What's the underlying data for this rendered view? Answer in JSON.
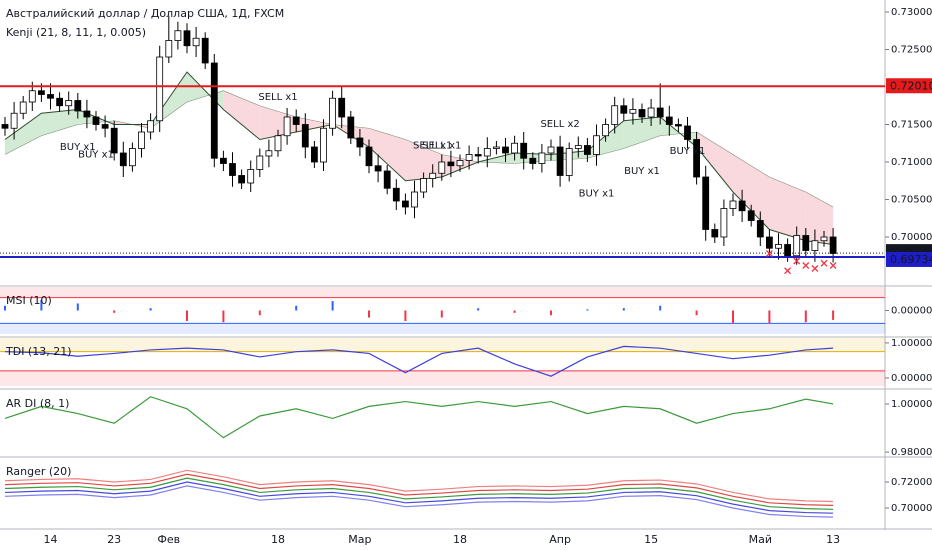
{
  "chart_data": [
    {
      "type": "candlestick",
      "title": "Австралийский доллар / Доллар США, 1Д, FXCM",
      "subtitle": "Kenji (21, 8, 11, 1, 0.005)",
      "categories": [
        null,
        null,
        null,
        null,
        null,
        "14",
        null,
        null,
        null,
        null,
        null,
        null,
        "23",
        null,
        null,
        null,
        null,
        null,
        "Фев",
        null,
        null,
        null,
        null,
        null,
        null,
        null,
        null,
        null,
        null,
        null,
        "18",
        null,
        null,
        null,
        null,
        null,
        null,
        null,
        null,
        "Мар",
        null,
        null,
        null,
        null,
        null,
        null,
        null,
        null,
        null,
        null,
        "18",
        null,
        null,
        null,
        null,
        null,
        null,
        null,
        null,
        null,
        null,
        "Апр",
        null,
        null,
        null,
        null,
        null,
        null,
        null,
        null,
        null,
        "15",
        null,
        null,
        null,
        null,
        null,
        null,
        null,
        null,
        null,
        null,
        null,
        "Май",
        null,
        null,
        null,
        null,
        null,
        null,
        null,
        "13"
      ],
      "open": [
        0.715,
        0.7145,
        0.7165,
        0.718,
        0.7195,
        0.719,
        0.7185,
        0.7175,
        0.7182,
        0.7168,
        0.716,
        0.715,
        0.7145,
        0.7112,
        0.7095,
        0.7118,
        0.714,
        0.7155,
        0.724,
        0.7262,
        0.7275,
        0.7255,
        0.7265,
        0.7232,
        0.7105,
        0.7098,
        0.7082,
        0.7072,
        0.709,
        0.7108,
        0.7115,
        0.7135,
        0.716,
        0.715,
        0.712,
        0.71,
        0.7145,
        0.7185,
        0.716,
        0.7132,
        0.712,
        0.7095,
        0.7088,
        0.7065,
        0.7048,
        0.704,
        0.706,
        0.7078,
        0.7085,
        0.71,
        0.7095,
        0.7102,
        0.711,
        0.7108,
        0.7118,
        0.712,
        0.7112,
        0.7125,
        0.7105,
        0.7098,
        0.7112,
        0.712,
        0.7082,
        0.7118,
        0.7122,
        0.711,
        0.7135,
        0.715,
        0.7175,
        0.7165,
        0.717,
        0.716,
        0.7172,
        0.716,
        0.715,
        0.7148,
        0.713,
        0.708,
        0.701,
        0.7,
        0.7038,
        0.7048,
        0.7035,
        0.7022,
        0.7,
        0.6985,
        0.699,
        0.6975,
        0.7002,
        0.6982,
        0.6995,
        0.7
      ],
      "high": [
        0.716,
        0.718,
        0.7188,
        0.7207,
        0.7205,
        0.7205,
        0.7193,
        0.7194,
        0.7192,
        0.7183,
        0.7168,
        0.7162,
        0.7155,
        0.7127,
        0.7126,
        0.7152,
        0.7165,
        0.7255,
        0.7295,
        0.7287,
        0.7285,
        0.728,
        0.7273,
        0.7244,
        0.7115,
        0.7113,
        0.709,
        0.7102,
        0.7118,
        0.713,
        0.7143,
        0.7172,
        0.717,
        0.7165,
        0.7128,
        0.7157,
        0.7195,
        0.72,
        0.7168,
        0.7144,
        0.713,
        0.711,
        0.7096,
        0.7077,
        0.7058,
        0.7075,
        0.7086,
        0.7097,
        0.711,
        0.7115,
        0.711,
        0.7122,
        0.712,
        0.7133,
        0.7128,
        0.7132,
        0.7135,
        0.714,
        0.7113,
        0.7124,
        0.713,
        0.7135,
        0.7126,
        0.7134,
        0.7132,
        0.715,
        0.7158,
        0.7187,
        0.7185,
        0.7185,
        0.7178,
        0.7184,
        0.7205,
        0.7175,
        0.7158,
        0.716,
        0.714,
        0.7095,
        0.7018,
        0.705,
        0.7058,
        0.7063,
        0.7043,
        0.7034,
        0.701,
        0.7005,
        0.6998,
        0.7014,
        0.7012,
        0.701,
        0.7008,
        0.7012
      ],
      "low": [
        0.7135,
        0.713,
        0.7157,
        0.7168,
        0.718,
        0.717,
        0.7167,
        0.7163,
        0.7158,
        0.7145,
        0.7142,
        0.7133,
        0.7102,
        0.708,
        0.7087,
        0.7106,
        0.713,
        0.714,
        0.7232,
        0.725,
        0.7245,
        0.724,
        0.7224,
        0.7093,
        0.7088,
        0.7067,
        0.7064,
        0.706,
        0.708,
        0.7093,
        0.7107,
        0.7123,
        0.714,
        0.7105,
        0.7092,
        0.7088,
        0.7135,
        0.7145,
        0.7124,
        0.7108,
        0.7085,
        0.7073,
        0.7057,
        0.7036,
        0.703,
        0.7025,
        0.7052,
        0.7066,
        0.7075,
        0.708,
        0.7087,
        0.709,
        0.7098,
        0.7093,
        0.711,
        0.71,
        0.7102,
        0.709,
        0.709,
        0.7086,
        0.7102,
        0.7067,
        0.7074,
        0.7106,
        0.71,
        0.7095,
        0.7127,
        0.7138,
        0.7155,
        0.715,
        0.7152,
        0.7148,
        0.715,
        0.7135,
        0.714,
        0.7118,
        0.707,
        0.6995,
        0.6992,
        0.6988,
        0.7028,
        0.702,
        0.7014,
        0.6988,
        0.6975,
        0.697,
        0.6967,
        0.6963,
        0.6972,
        0.6967,
        0.6987,
        0.6966
      ],
      "close": [
        0.7145,
        0.7165,
        0.718,
        0.7195,
        0.719,
        0.7185,
        0.7175,
        0.7182,
        0.7168,
        0.716,
        0.715,
        0.7145,
        0.7112,
        0.7095,
        0.7118,
        0.714,
        0.7155,
        0.724,
        0.7262,
        0.7275,
        0.7255,
        0.7265,
        0.7232,
        0.7105,
        0.7098,
        0.7082,
        0.7072,
        0.709,
        0.7108,
        0.7115,
        0.7135,
        0.716,
        0.715,
        0.712,
        0.71,
        0.7145,
        0.7185,
        0.716,
        0.7132,
        0.712,
        0.7095,
        0.7088,
        0.7065,
        0.7048,
        0.704,
        0.706,
        0.7078,
        0.7085,
        0.71,
        0.7095,
        0.7102,
        0.711,
        0.7108,
        0.7118,
        0.712,
        0.7112,
        0.7125,
        0.7105,
        0.7098,
        0.7112,
        0.712,
        0.7082,
        0.7118,
        0.7122,
        0.711,
        0.7135,
        0.715,
        0.7175,
        0.7165,
        0.717,
        0.716,
        0.7172,
        0.716,
        0.715,
        0.7148,
        0.713,
        0.708,
        0.701,
        0.7,
        0.7038,
        0.7048,
        0.7035,
        0.7022,
        0.7,
        0.6985,
        0.699,
        0.6975,
        0.7002,
        0.6982,
        0.6995,
        0.7,
        0.6978
      ],
      "up_color": "#ffffff",
      "down_color": "#000000",
      "ylim": [
        0.6936,
        0.7316
      ],
      "yticks": [
        {
          "value": 0.73,
          "label": "0.73000"
        },
        {
          "value": 0.725,
          "label": "0.72500"
        },
        {
          "value": 0.715,
          "label": "0.71500"
        },
        {
          "value": 0.71,
          "label": "0.71000"
        },
        {
          "value": 0.705,
          "label": "0.70500"
        },
        {
          "value": 0.7,
          "label": "0.70000"
        }
      ],
      "band_x": [
        0,
        4,
        8,
        12,
        16,
        20,
        24,
        28,
        32,
        36,
        40,
        44,
        48,
        52,
        56,
        60,
        64,
        68,
        72,
        76,
        80,
        84,
        88,
        91
      ],
      "band_fast": [
        0.713,
        0.7165,
        0.717,
        0.715,
        0.715,
        0.722,
        0.717,
        0.713,
        0.714,
        0.715,
        0.712,
        0.7075,
        0.708,
        0.71,
        0.7112,
        0.711,
        0.7115,
        0.7155,
        0.716,
        0.712,
        0.706,
        0.701,
        0.6995,
        0.699
      ],
      "band_slow": [
        0.711,
        0.7135,
        0.715,
        0.7155,
        0.7145,
        0.718,
        0.7195,
        0.7175,
        0.716,
        0.715,
        0.7145,
        0.713,
        0.711,
        0.71,
        0.7098,
        0.7102,
        0.7105,
        0.7118,
        0.7135,
        0.714,
        0.711,
        0.708,
        0.706,
        0.704
      ],
      "band_up_color": "#c8e6c9",
      "band_down_color": "#f8d0d4",
      "band_line_color": "#2e4d2e",
      "price_lines": [
        {
          "value": 0.7201,
          "label": "0.72010",
          "color": "#e31b1b"
        },
        {
          "value": 0.69785,
          "label": "0.69785",
          "color": "#131722"
        },
        {
          "value": 0.69734,
          "label": "0.69734",
          "color": "#1e1ec8"
        }
      ],
      "annotations": [
        {
          "text": "BUY x1",
          "x": 8,
          "y": 0.712,
          "color": "#5b5bd6"
        },
        {
          "text": "BUY x1",
          "x": 10,
          "y": 0.711,
          "color": "#5b5bd6"
        },
        {
          "text": "SELL x1",
          "x": 30,
          "y": 0.7187,
          "color": "#f23645"
        },
        {
          "text": "SELL x1",
          "x": 47,
          "y": 0.7122,
          "color": "#f23645"
        },
        {
          "text": "SELL x1",
          "x": 48,
          "y": 0.7122,
          "color": "#f23645"
        },
        {
          "text": "SELL x2",
          "x": 61,
          "y": 0.7151,
          "color": "#f23645"
        },
        {
          "text": "BUY x1",
          "x": 65,
          "y": 0.7058,
          "color": "#5b5bd6"
        },
        {
          "text": "BUY x1",
          "x": 70,
          "y": 0.7088,
          "color": "#5b5bd6"
        },
        {
          "text": "BUY x1",
          "x": 75,
          "y": 0.7115,
          "color": "#5b5bd6"
        }
      ],
      "cross_x": [
        84,
        86,
        87,
        88,
        89,
        90,
        91
      ],
      "cross_y": [
        0.6978,
        0.6955,
        0.6968,
        0.6962,
        0.6958,
        0.6965,
        0.6962
      ],
      "cross_color": "#f23645"
    },
    {
      "type": "histogram",
      "title": "MSI (10)",
      "x": [
        0,
        4,
        8,
        12,
        16,
        20,
        24,
        28,
        32,
        36,
        40,
        44,
        48,
        52,
        56,
        60,
        64,
        68,
        72,
        76,
        80,
        84,
        88,
        91
      ],
      "values": [
        0.2,
        0.45,
        0.3,
        -0.1,
        0.1,
        -0.45,
        -0.5,
        -0.2,
        0.2,
        0.4,
        -0.3,
        -0.45,
        -0.3,
        0.1,
        -0.1,
        -0.2,
        0.05,
        0.1,
        0.2,
        -0.2,
        -0.55,
        -0.55,
        -0.5,
        -0.4
      ],
      "pos_color": "#2962ff",
      "neg_color": "#f23645",
      "levels": [
        0.55,
        -0.55
      ],
      "level_colors": [
        "#f23645",
        "#2962ff"
      ],
      "ylim": [
        -1,
        1
      ],
      "yticks": [
        {
          "value": 0,
          "label": "0.00000"
        }
      ]
    },
    {
      "type": "line",
      "title": "TDI (13, 21)",
      "x": [
        0,
        4,
        8,
        12,
        16,
        20,
        24,
        28,
        32,
        36,
        40,
        44,
        48,
        52,
        56,
        60,
        64,
        68,
        72,
        76,
        80,
        84,
        88,
        91
      ],
      "series": [
        {
          "color": "#3f3fd8",
          "values": [
            0.75,
            0.72,
            0.62,
            0.7,
            0.8,
            0.85,
            0.8,
            0.6,
            0.75,
            0.8,
            0.7,
            0.15,
            0.7,
            0.85,
            0.4,
            0.05,
            0.6,
            0.9,
            0.85,
            0.7,
            0.55,
            0.65,
            0.8,
            0.85
          ]
        }
      ],
      "levels": [
        0.75,
        0.2
      ],
      "level_colors": [
        "#e0b000",
        "#f23645"
      ],
      "ylim": [
        -0.23,
        1.14
      ],
      "yticks": [
        {
          "value": 1,
          "label": "1.00000"
        },
        {
          "value": 0,
          "label": "0.00000"
        }
      ]
    },
    {
      "type": "line",
      "title": "AR DI (8, 1)",
      "x": [
        0,
        4,
        8,
        12,
        16,
        20,
        24,
        28,
        32,
        36,
        40,
        44,
        48,
        52,
        56,
        60,
        64,
        68,
        72,
        76,
        80,
        84,
        88,
        91
      ],
      "series": [
        {
          "color": "#3c9a3c",
          "values": [
            0.994,
            0.999,
            0.996,
            0.992,
            1.003,
            0.998,
            0.986,
            0.995,
            0.998,
            0.994,
            0.999,
            1.001,
            0.999,
            1.001,
            0.999,
            1.001,
            0.996,
            0.999,
            0.998,
            0.992,
            0.996,
            0.998,
            1.002,
            1.0
          ]
        }
      ],
      "ylim": [
        0.9788,
        1.0058
      ],
      "yticks": [
        {
          "value": 1,
          "label": "1.00000"
        },
        {
          "value": 0.98,
          "label": "0.98000"
        }
      ]
    },
    {
      "type": "line",
      "title": "Ranger (20)",
      "x": [
        0,
        4,
        8,
        12,
        16,
        20,
        24,
        28,
        32,
        36,
        40,
        44,
        48,
        52,
        56,
        60,
        64,
        68,
        72,
        76,
        80,
        84,
        88,
        91
      ],
      "series": [
        {
          "color": "#f08080",
          "values": [
            0.721,
            0.722,
            0.7225,
            0.72,
            0.722,
            0.729,
            0.724,
            0.718,
            0.72,
            0.721,
            0.718,
            0.713,
            0.7145,
            0.7165,
            0.717,
            0.7165,
            0.7175,
            0.721,
            0.7215,
            0.7185,
            0.712,
            0.707,
            0.7055,
            0.705
          ]
        },
        {
          "color": "#e04848",
          "values": [
            0.718,
            0.719,
            0.7195,
            0.717,
            0.719,
            0.726,
            0.721,
            0.715,
            0.717,
            0.718,
            0.715,
            0.71,
            0.7115,
            0.7135,
            0.714,
            0.7135,
            0.7145,
            0.718,
            0.7185,
            0.7155,
            0.709,
            0.704,
            0.7025,
            0.702
          ]
        },
        {
          "color": "#3c9a3c",
          "values": [
            0.715,
            0.716,
            0.7165,
            0.714,
            0.716,
            0.723,
            0.718,
            0.712,
            0.714,
            0.715,
            0.712,
            0.707,
            0.7085,
            0.7105,
            0.711,
            0.7105,
            0.7115,
            0.715,
            0.7155,
            0.7125,
            0.706,
            0.701,
            0.6995,
            0.699
          ]
        },
        {
          "color": "#4848e0",
          "values": [
            0.712,
            0.713,
            0.7135,
            0.711,
            0.713,
            0.72,
            0.715,
            0.709,
            0.711,
            0.712,
            0.709,
            0.704,
            0.7055,
            0.7075,
            0.708,
            0.7075,
            0.7085,
            0.712,
            0.7125,
            0.7095,
            0.703,
            0.698,
            0.6965,
            0.696
          ]
        },
        {
          "color": "#8080f0",
          "values": [
            0.709,
            0.71,
            0.7105,
            0.708,
            0.71,
            0.717,
            0.712,
            0.706,
            0.708,
            0.709,
            0.706,
            0.701,
            0.7025,
            0.7045,
            0.705,
            0.7045,
            0.7055,
            0.709,
            0.7095,
            0.7065,
            0.7,
            0.695,
            0.6935,
            0.693
          ]
        }
      ],
      "ylim": [
        0.6846,
        0.7385
      ],
      "yticks": [
        {
          "value": 0.72,
          "label": "0.72000"
        },
        {
          "value": 0.7,
          "label": "0.70000"
        }
      ]
    }
  ]
}
